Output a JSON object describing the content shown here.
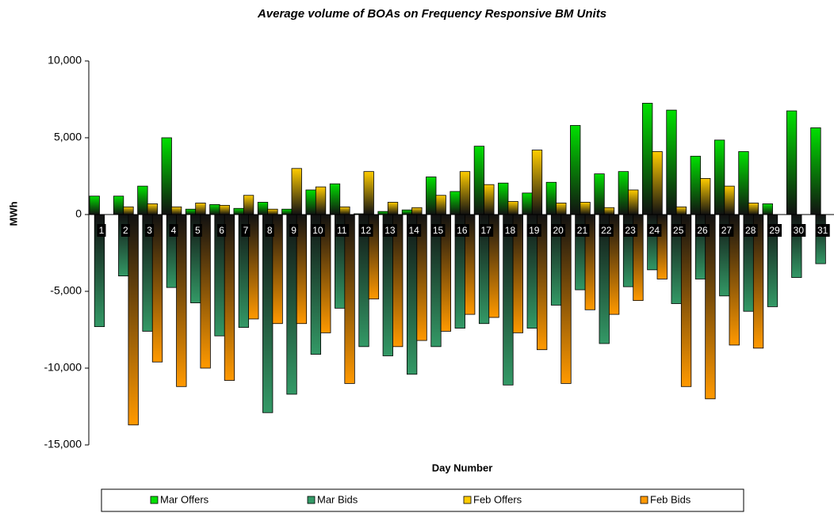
{
  "chart_data": {
    "type": "bar",
    "title": "Average volume of BOAs on Frequency Responsive BM Units",
    "x_label": "Day Number",
    "y_label": "MWh",
    "categories": [
      "1",
      "2",
      "3",
      "4",
      "5",
      "6",
      "7",
      "8",
      "9",
      "10",
      "11",
      "12",
      "13",
      "14",
      "15",
      "16",
      "17",
      "18",
      "19",
      "20",
      "21",
      "22",
      "23",
      "24",
      "25",
      "26",
      "27",
      "28",
      "29",
      "30",
      "31"
    ],
    "series": [
      {
        "name": "Mar Offers",
        "color": "#00e000",
        "values": [
          1200,
          1200,
          1850,
          5000,
          350,
          650,
          400,
          800,
          350,
          1600,
          2000,
          50,
          200,
          300,
          2450,
          1500,
          4450,
          2050,
          1400,
          2100,
          5800,
          2650,
          2800,
          7250,
          6800,
          3800,
          4850,
          4100,
          700,
          6750,
          5650
        ]
      },
      {
        "name": "Mar Bids",
        "color": "#339966",
        "values": [
          -7300,
          -4000,
          -7600,
          -4750,
          -5750,
          -7900,
          -7350,
          -12900,
          -11700,
          -9100,
          -6100,
          -8600,
          -9200,
          -10400,
          -8600,
          -7400,
          -7100,
          -11100,
          -7400,
          -5900,
          -4900,
          -8400,
          -4700,
          -3600,
          -5800,
          -4200,
          -5300,
          -6300,
          -6000,
          -4100,
          -3200
        ]
      },
      {
        "name": "Feb Offers",
        "color": "#ffcc00",
        "values": [
          null,
          500,
          700,
          500,
          750,
          600,
          1250,
          350,
          3000,
          1800,
          500,
          2800,
          800,
          450,
          1250,
          2800,
          1950,
          850,
          4200,
          750,
          800,
          450,
          1600,
          4100,
          500,
          2350,
          1850,
          750,
          null,
          null,
          null
        ]
      },
      {
        "name": "Feb Bids",
        "color": "#ff9900",
        "values": [
          null,
          -13700,
          -9600,
          -11200,
          -10000,
          -10800,
          -6800,
          -7100,
          -7100,
          -7700,
          -11000,
          -5500,
          -8600,
          -8200,
          -7600,
          -6500,
          -6700,
          -7700,
          -8800,
          -11000,
          -6200,
          -6500,
          -5600,
          -4200,
          -11200,
          -12000,
          -8500,
          -8700,
          null,
          null,
          null
        ]
      }
    ],
    "ylim": [
      -15000,
      10000
    ],
    "yticks": [
      {
        "value": -15000,
        "label": "-15,000"
      },
      {
        "value": -10000,
        "label": "-10,000"
      },
      {
        "value": -5000,
        "label": "-5,000"
      },
      0,
      {
        "value": 5000,
        "label": "5,000"
      },
      {
        "value": 10000,
        "label": "10,000"
      }
    ],
    "grid": false,
    "legend": "bottom"
  }
}
